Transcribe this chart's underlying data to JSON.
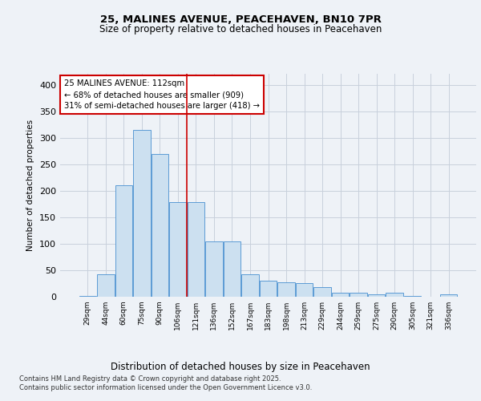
{
  "title1": "25, MALINES AVENUE, PEACEHAVEN, BN10 7PR",
  "title2": "Size of property relative to detached houses in Peacehaven",
  "xlabel": "Distribution of detached houses by size in Peacehaven",
  "ylabel": "Number of detached properties",
  "categories": [
    "29sqm",
    "44sqm",
    "60sqm",
    "75sqm",
    "90sqm",
    "106sqm",
    "121sqm",
    "136sqm",
    "152sqm",
    "167sqm",
    "183sqm",
    "198sqm",
    "213sqm",
    "229sqm",
    "244sqm",
    "259sqm",
    "275sqm",
    "290sqm",
    "305sqm",
    "321sqm",
    "336sqm"
  ],
  "values": [
    2,
    42,
    210,
    315,
    270,
    178,
    178,
    105,
    105,
    42,
    30,
    28,
    25,
    18,
    7,
    7,
    5,
    7,
    2,
    0,
    4
  ],
  "bar_color": "#cce0f0",
  "bar_edge_color": "#5b9bd5",
  "vline_x": 5.5,
  "vline_color": "#cc0000",
  "annotation_text": "25 MALINES AVENUE: 112sqm\n← 68% of detached houses are smaller (909)\n31% of semi-detached houses are larger (418) →",
  "annotation_box_color": "#ffffff",
  "annotation_box_edge": "#cc0000",
  "footer1": "Contains HM Land Registry data © Crown copyright and database right 2025.",
  "footer2": "Contains public sector information licensed under the Open Government Licence v3.0.",
  "bg_color": "#eef2f7",
  "grid_color": "#c8d0dc",
  "ylim": [
    0,
    420
  ],
  "yticks": [
    0,
    50,
    100,
    150,
    200,
    250,
    300,
    350,
    400
  ]
}
